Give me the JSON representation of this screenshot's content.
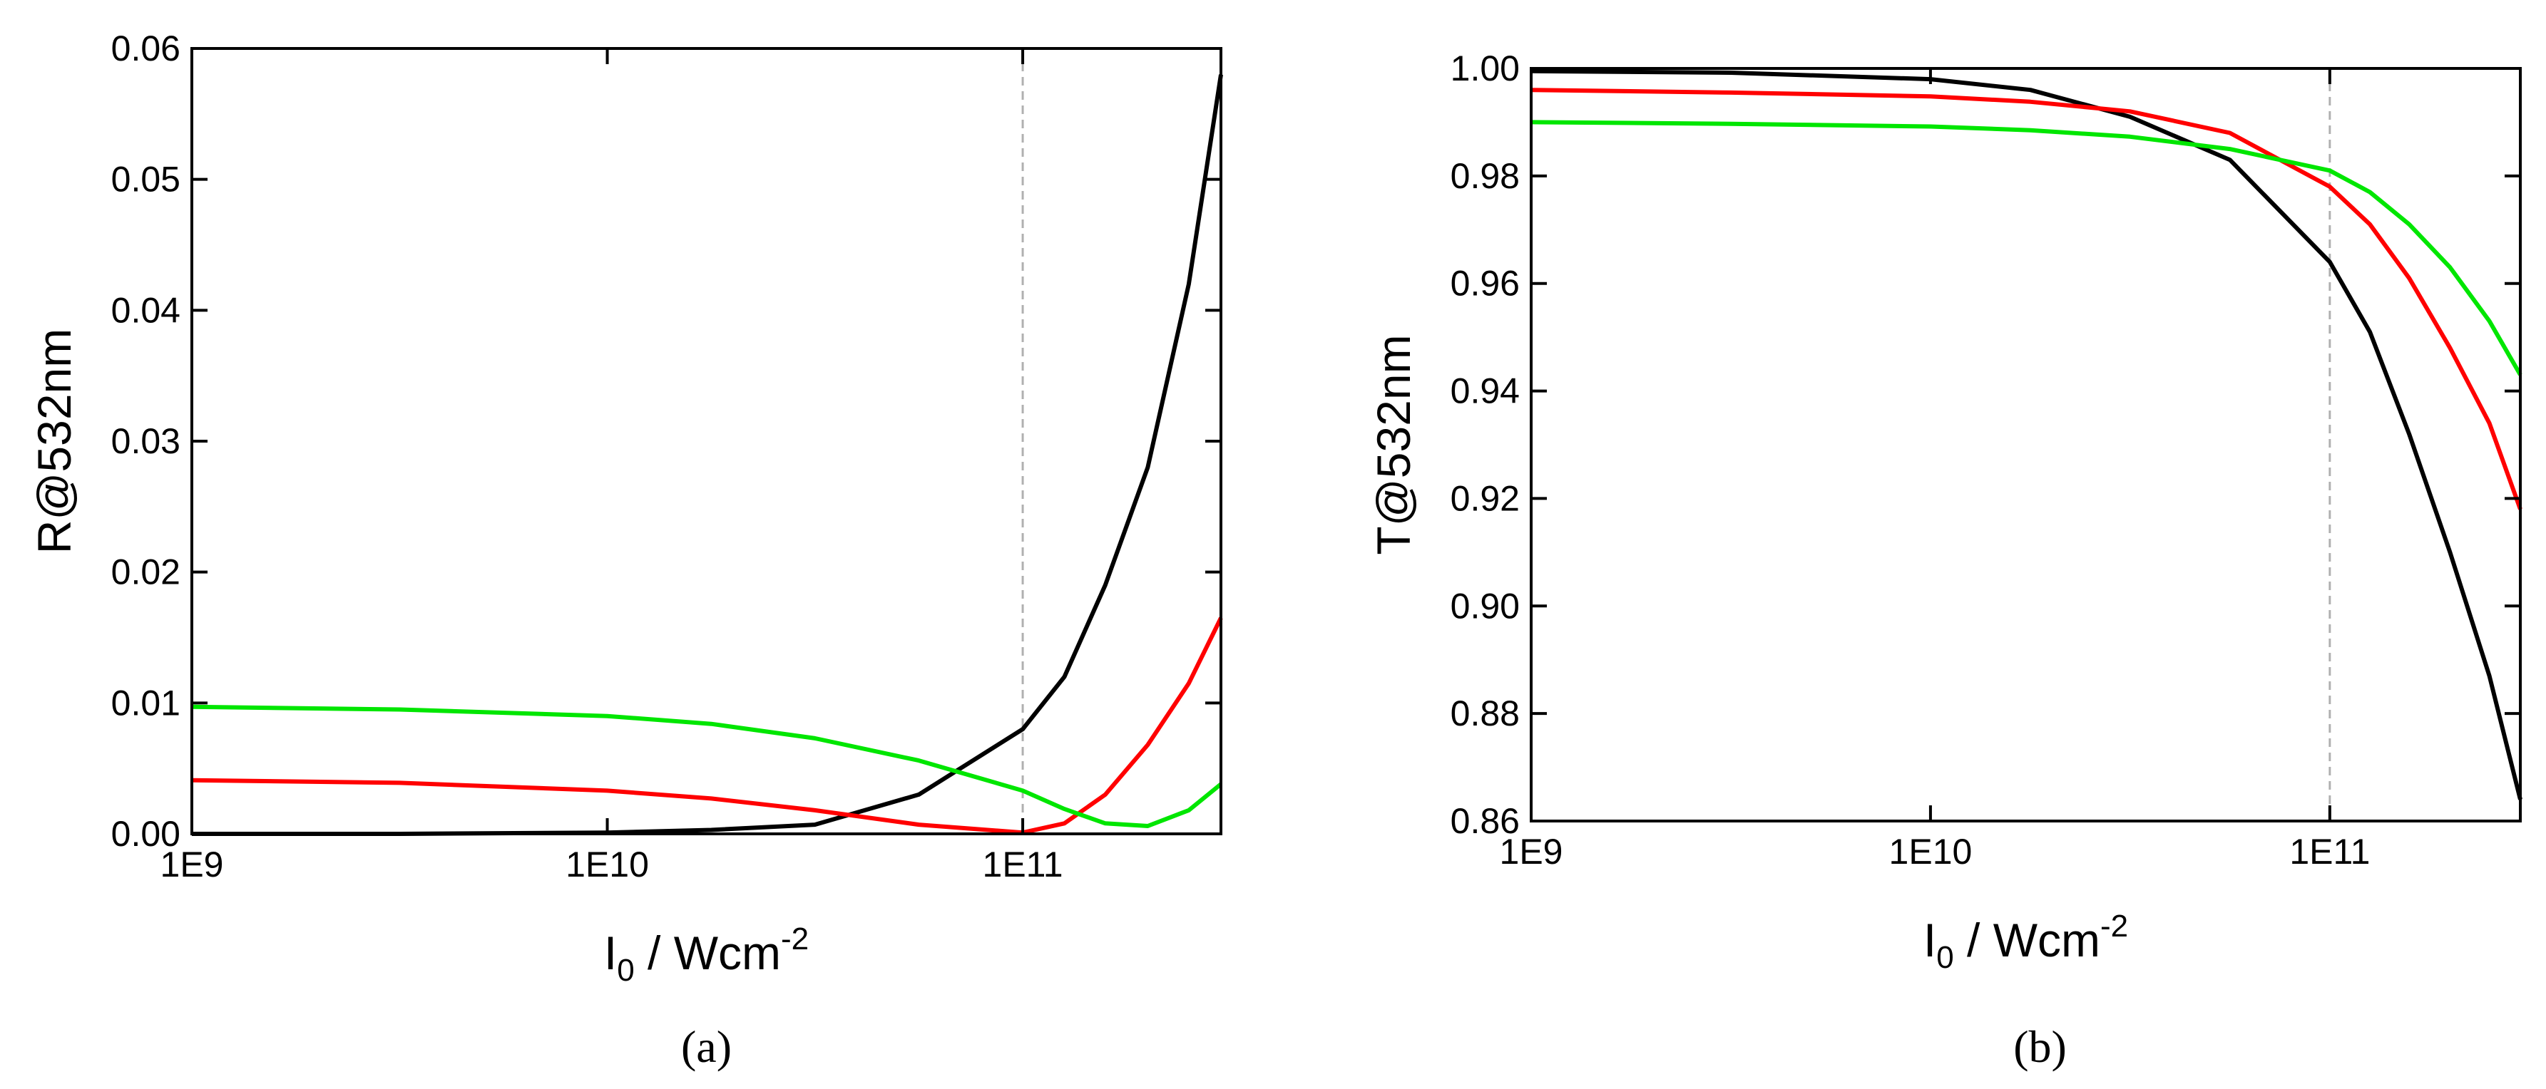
{
  "charts": [
    {
      "chart_data": {
        "type": "line",
        "panel_label": "(a)",
        "ylabel": "R@532nm",
        "xlabel": {
          "main": "I",
          "sub": "0",
          "rest": " / Wcm",
          "sup": "-2"
        },
        "xscale": "log",
        "x": [
          1000000000.0,
          3160000000.0,
          10000000000.0,
          17800000000.0,
          31600000000.0,
          56200000000.0,
          100000000000.0,
          126000000000.0,
          158000000000.0,
          200000000000.0,
          251000000000.0,
          300000000000.0
        ],
        "xlim": [
          1000000000.0,
          300000000000.0
        ],
        "xticks": [
          {
            "value": 1000000000.0,
            "label": "1E9"
          },
          {
            "value": 10000000000.0,
            "label": "1E10"
          },
          {
            "value": 100000000000.0,
            "label": "1E11"
          }
        ],
        "ylim": [
          0,
          0.06
        ],
        "yticks": [
          {
            "value": 0,
            "label": "0.00"
          },
          {
            "value": 0.01,
            "label": "0.01"
          },
          {
            "value": 0.02,
            "label": "0.02"
          },
          {
            "value": 0.03,
            "label": "0.03"
          },
          {
            "value": 0.04,
            "label": "0.04"
          },
          {
            "value": 0.05,
            "label": "0.05"
          },
          {
            "value": 0.06,
            "label": "0.06"
          }
        ],
        "vline": 100000000000.0,
        "series": [
          {
            "color": "#000000",
            "values": [
              0,
              0,
              0.0001,
              0.0003,
              0.0007,
              0.003,
              0.008,
              0.012,
              0.019,
              0.028,
              0.042,
              0.058
            ]
          },
          {
            "color": "#ff0000",
            "values": [
              0.0041,
              0.0039,
              0.0033,
              0.0027,
              0.0018,
              0.0007,
              0.0001,
              0.0008,
              0.003,
              0.0068,
              0.0115,
              0.0165
            ]
          },
          {
            "color": "#00e600",
            "values": [
              0.0097,
              0.0095,
              0.009,
              0.0084,
              0.0073,
              0.0056,
              0.0033,
              0.0019,
              0.0008,
              0.0006,
              0.0018,
              0.0038
            ]
          }
        ]
      }
    },
    {
      "chart_data": {
        "type": "line",
        "panel_label": "(b)",
        "ylabel": "T@532nm",
        "xlabel": {
          "main": "I",
          "sub": "0",
          "rest": " / Wcm",
          "sup": "-2"
        },
        "xscale": "log",
        "x": [
          1000000000.0,
          3160000000.0,
          10000000000.0,
          17800000000.0,
          31600000000.0,
          56200000000.0,
          100000000000.0,
          126000000000.0,
          158000000000.0,
          200000000000.0,
          251000000000.0,
          300000000000.0
        ],
        "xlim": [
          1000000000.0,
          300000000000.0
        ],
        "xticks": [
          {
            "value": 1000000000.0,
            "label": "1E9"
          },
          {
            "value": 10000000000.0,
            "label": "1E10"
          },
          {
            "value": 100000000000.0,
            "label": "1E11"
          }
        ],
        "ylim": [
          0.86,
          1.0
        ],
        "yticks": [
          {
            "value": 0.86,
            "label": "0.86"
          },
          {
            "value": 0.88,
            "label": "0.88"
          },
          {
            "value": 0.9,
            "label": "0.90"
          },
          {
            "value": 0.92,
            "label": "0.92"
          },
          {
            "value": 0.94,
            "label": "0.94"
          },
          {
            "value": 0.96,
            "label": "0.96"
          },
          {
            "value": 0.98,
            "label": "0.98"
          },
          {
            "value": 1.0,
            "label": "1.00"
          }
        ],
        "vline": 100000000000.0,
        "series": [
          {
            "color": "#000000",
            "values": [
              0.9995,
              0.9992,
              0.998,
              0.996,
              0.991,
              0.983,
              0.964,
              0.951,
              0.932,
              0.91,
              0.887,
              0.864
            ]
          },
          {
            "color": "#ff0000",
            "values": [
              0.996,
              0.9955,
              0.9948,
              0.9938,
              0.992,
              0.988,
              0.978,
              0.971,
              0.961,
              0.948,
              0.934,
              0.918
            ]
          },
          {
            "color": "#00e600",
            "values": [
              0.99,
              0.9897,
              0.9892,
              0.9885,
              0.9873,
              0.985,
              0.981,
              0.977,
              0.971,
              0.963,
              0.953,
              0.943
            ]
          }
        ]
      }
    }
  ]
}
